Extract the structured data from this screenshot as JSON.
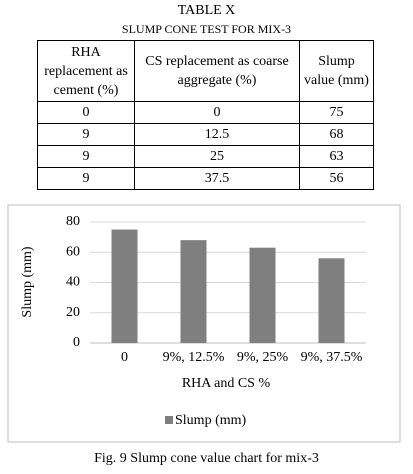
{
  "table_title": "TABLE X",
  "table_subtitle": "SLUMP CONE TEST FOR MIX-3",
  "table": {
    "header": [
      "RHA replacement as cement (%)",
      "CS replacement as coarse aggregate (%)",
      "Slump value (mm)"
    ],
    "rows": [
      [
        0,
        0,
        75
      ],
      [
        9,
        12.5,
        68
      ],
      [
        9,
        25,
        63
      ],
      [
        9,
        37.5,
        56
      ]
    ]
  },
  "chart_data": {
    "type": "bar",
    "x_label": "RHA and CS %",
    "y_label": "Slump (mm)",
    "categories": [
      "0",
      "9%, 12.5%",
      "9%, 25%",
      "9%, 37.5%"
    ],
    "series": [
      {
        "name": "Slump (mm)",
        "color": "#7f7f7f",
        "values": [
          75,
          68,
          63,
          56
        ]
      }
    ],
    "ylim": [
      0,
      80
    ],
    "yticks": [
      0,
      20,
      40,
      60,
      80
    ],
    "grid": true,
    "legend": "bottom"
  },
  "caption": "Fig. 9 Slump cone value chart for mix-3"
}
